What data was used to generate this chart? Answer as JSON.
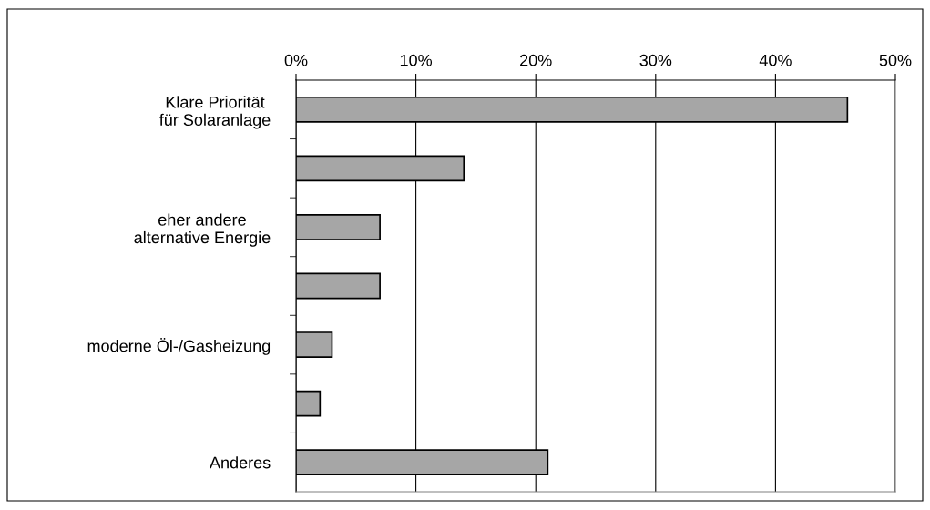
{
  "chart_data": {
    "type": "bar",
    "orientation": "horizontal",
    "categories": [
      "Klare Priorität\nfür Solaranlage",
      null,
      "eher andere\nalternative Energie",
      null,
      "moderne Öl-/Gasheizung",
      null,
      "Anderes"
    ],
    "values": [
      46,
      14,
      7,
      7,
      3,
      2,
      21
    ],
    "color": "#a6a6a6",
    "xlim": [
      0,
      50
    ],
    "xticks": [
      {
        "value": 0,
        "label": "0%"
      },
      {
        "value": 10,
        "label": "10%"
      },
      {
        "value": 20,
        "label": "20%"
      },
      {
        "value": 30,
        "label": "30%"
      },
      {
        "value": 40,
        "label": "40%"
      },
      {
        "value": 50,
        "label": "50%"
      }
    ],
    "grid": "x"
  }
}
